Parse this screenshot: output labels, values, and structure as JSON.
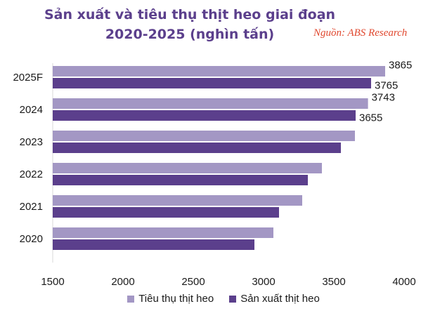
{
  "header": {
    "title_line1": "Sản xuất và tiêu thụ thịt heo giai đoạn",
    "title_line2": "2020-2025 (nghìn tấn)",
    "source": "Nguồn: ABS Research"
  },
  "colors": {
    "consumption": "#a397c4",
    "production": "#5b3f8c"
  },
  "chart_data": {
    "type": "bar",
    "orientation": "horizontal",
    "categories": [
      "2025F",
      "2024",
      "2023",
      "2022",
      "2021",
      "2020"
    ],
    "series": [
      {
        "name": "Tiêu thụ thịt heo",
        "values": [
          3865,
          3743,
          3650,
          3415,
          3275,
          3070
        ]
      },
      {
        "name": "Sản xuất thịt heo",
        "values": [
          3765,
          3655,
          3550,
          3315,
          3110,
          2935
        ]
      }
    ],
    "data_labels": [
      {
        "category": "2025F",
        "series": 0,
        "text": "3865"
      },
      {
        "category": "2025F",
        "series": 1,
        "text": "3765"
      },
      {
        "category": "2024",
        "series": 0,
        "text": "3743"
      },
      {
        "category": "2024",
        "series": 1,
        "text": "3655"
      }
    ],
    "xlim": [
      1500,
      4000
    ],
    "xticks": [
      "1500",
      "2000",
      "2500",
      "3000",
      "3500",
      "4000"
    ],
    "grid": false,
    "legend_position": "bottom"
  }
}
